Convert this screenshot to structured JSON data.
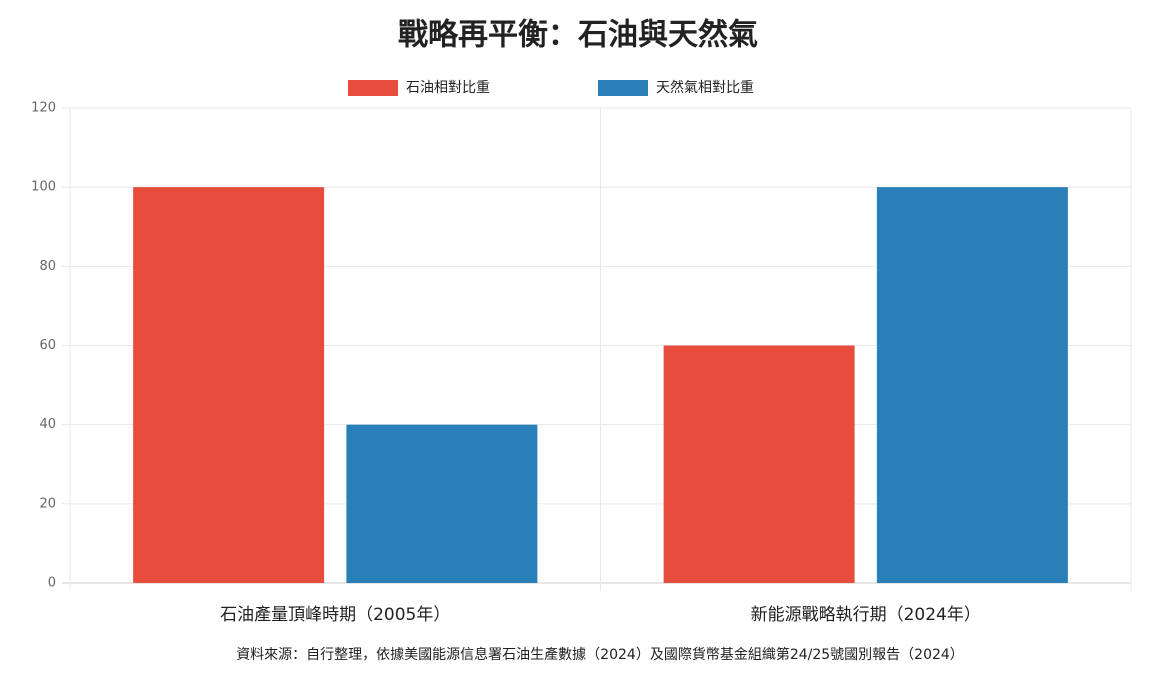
{
  "chart_data": {
    "type": "bar",
    "title": "戰略再平衡：石油與天然氣",
    "categories": [
      "石油產量頂峰時期（2005年）",
      "新能源戰略執行期（2024年）"
    ],
    "series": [
      {
        "name": "石油相對比重",
        "color": "#e74c3c",
        "values": [
          100,
          60
        ]
      },
      {
        "name": "天然氣相對比重",
        "color": "#2980b9",
        "values": [
          40,
          100
        ]
      }
    ],
    "ylim": [
      0,
      120
    ],
    "yticks": [
      0,
      20,
      40,
      60,
      80,
      100,
      120
    ],
    "grid": true,
    "legend": "top",
    "source": "資料來源：自行整理，依據美國能源信息署石油生產數據（2024）及國際貨幣基金組織第24/25號國別報告（2024）"
  }
}
